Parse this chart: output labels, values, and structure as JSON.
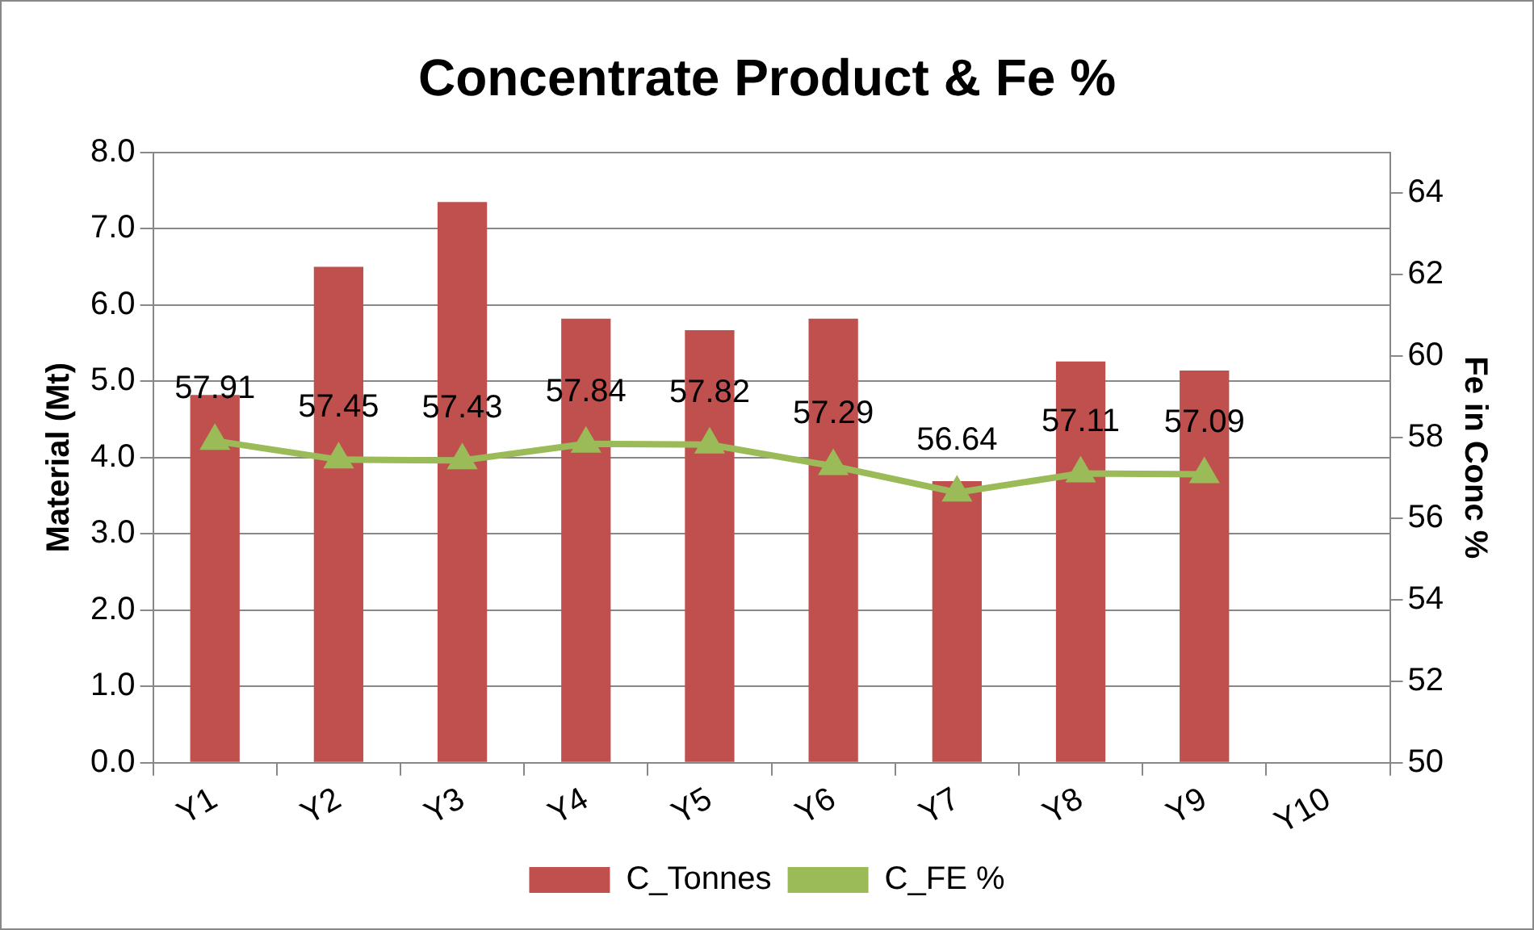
{
  "chart_data": {
    "type": "bar",
    "title": "Concentrate Product & Fe %",
    "ylabel": "Material (Mt)",
    "y2label": "Fe in Conc %",
    "categories": [
      "Y1",
      "Y2",
      "Y3",
      "Y4",
      "Y5",
      "Y6",
      "Y7",
      "Y8",
      "Y9",
      "Y10"
    ],
    "series": [
      {
        "name": "C_Tonnes",
        "color": "#c0504d",
        "values": [
          4.82,
          6.5,
          7.35,
          5.82,
          5.67,
          5.82,
          3.69,
          5.26,
          5.14,
          null
        ]
      },
      {
        "name": "C_FE %",
        "type": "line",
        "axis": "y2",
        "color": "#9bbb59",
        "marker": "triangle",
        "values": [
          57.91,
          57.45,
          57.43,
          57.84,
          57.82,
          57.29,
          56.64,
          57.11,
          57.09,
          null
        ],
        "value_labels": [
          "57.91",
          "57.45",
          "57.43",
          "57.84",
          "57.82",
          "57.29",
          "56.64",
          "57.11",
          "57.09",
          null
        ]
      }
    ],
    "ylim": [
      0,
      8
    ],
    "yticks": [
      {
        "value": 0,
        "label": "0.0"
      },
      {
        "value": 1,
        "label": "1.0"
      },
      {
        "value": 2,
        "label": "2.0"
      },
      {
        "value": 3,
        "label": "3.0"
      },
      {
        "value": 4,
        "label": "4.0"
      },
      {
        "value": 5,
        "label": "5.0"
      },
      {
        "value": 6,
        "label": "6.0"
      },
      {
        "value": 7,
        "label": "7.0"
      },
      {
        "value": 8,
        "label": "8.0"
      }
    ],
    "y2lim": [
      50,
      65
    ],
    "y2ticks": [
      50,
      52,
      54,
      56,
      58,
      60,
      62,
      64
    ],
    "grid": "y",
    "legend": "bottom"
  }
}
